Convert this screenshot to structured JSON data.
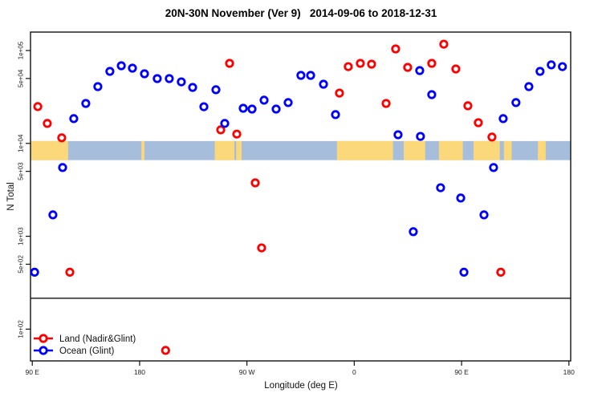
{
  "chart_data": {
    "type": "scatter",
    "title": "20N-30N November (Ver 9)   2014-09-06 to 2018-12-31",
    "xlabel": "Longitude (deg E)",
    "ylabel": "N Total",
    "x_axis": {
      "range_deg": [
        88.5,
        541.5
      ],
      "tick_values_deg": [
        90,
        180,
        270,
        360,
        450,
        540
      ],
      "tick_labels": [
        "90 E",
        "180",
        "90 W",
        "0",
        "90 E",
        "180"
      ]
    },
    "y_axis": {
      "scale": "log",
      "tick_values": [
        100000,
        50000,
        10000,
        5000,
        1000,
        500,
        100
      ],
      "tick_labels": [
        "1e+05",
        "5e+04",
        "1e+04",
        "5e+03",
        "1e+03",
        "5e+02",
        "1e+02"
      ]
    },
    "grid": false,
    "separator_line_value": 215,
    "separator_line_color": "#555555",
    "map_band": {
      "top_value": 10600,
      "bottom_value": 6600,
      "ocean_color": "#A6BDDB",
      "land_color": "#FBD97B",
      "land_segments_deg": [
        [
          88.5,
          120
        ],
        [
          181.5,
          184
        ],
        [
          243,
          259.5
        ],
        [
          261,
          265.5
        ],
        [
          345.5,
          392.5
        ],
        [
          401.5,
          419.5
        ],
        [
          431,
          451
        ],
        [
          460,
          482
        ],
        [
          485.5,
          492
        ],
        [
          514,
          520.5
        ]
      ]
    },
    "legend": {
      "position": "bottom-left",
      "items": [
        "Land (Nadir&Glint)",
        "Ocean (Glint)"
      ]
    },
    "series": [
      {
        "name": "Land (Nadir&Glint)",
        "color": "#FF0000",
        "marker": "open-circle",
        "points_lon_value": [
          [
            94.6,
            24900
          ],
          [
            102.6,
            16400
          ],
          [
            114.7,
            11500
          ],
          [
            121.5,
            410
          ],
          [
            201.8,
            59
          ],
          [
            248.0,
            14000
          ],
          [
            255.4,
            72800
          ],
          [
            261.5,
            12600
          ],
          [
            277.0,
            3760
          ],
          [
            282.3,
            750
          ],
          [
            347.6,
            34800
          ],
          [
            355.0,
            67100
          ],
          [
            365.1,
            72800
          ],
          [
            374.5,
            71300
          ],
          [
            386.7,
            26900
          ],
          [
            394.7,
            104000
          ],
          [
            404.8,
            65900
          ],
          [
            425.0,
            72800
          ],
          [
            435.1,
            117000
          ],
          [
            445.2,
            63300
          ],
          [
            455.3,
            25400
          ],
          [
            464.0,
            16700
          ],
          [
            475.5,
            11700
          ],
          [
            482.9,
            410
          ]
        ]
      },
      {
        "name": "Ocean (Glint)",
        "color": "#0000FF",
        "marker": "open-circle",
        "points_lon_value": [
          [
            91.9,
            410
          ],
          [
            107.3,
            1700
          ],
          [
            115.4,
            5500
          ],
          [
            124.8,
            18500
          ],
          [
            134.9,
            26900
          ],
          [
            145.0,
            40900
          ],
          [
            155.1,
            59600
          ],
          [
            164.6,
            68500
          ],
          [
            174.0,
            64600
          ],
          [
            184.1,
            56200
          ],
          [
            194.8,
            49900
          ],
          [
            204.9,
            49900
          ],
          [
            215.0,
            46000
          ],
          [
            224.5,
            40100
          ],
          [
            233.9,
            24800
          ],
          [
            244.0,
            37800
          ],
          [
            251.4,
            16400
          ],
          [
            266.9,
            23900
          ],
          [
            274.3,
            23400
          ],
          [
            284.4,
            29200
          ],
          [
            294.5,
            23400
          ],
          [
            304.6,
            27500
          ],
          [
            315.3,
            54000
          ],
          [
            323.4,
            54000
          ],
          [
            334.2,
            43400
          ],
          [
            344.3,
            20400
          ],
          [
            396.7,
            12400
          ],
          [
            409.5,
            1120
          ],
          [
            414.9,
            60800
          ],
          [
            415.5,
            11900
          ],
          [
            425.0,
            33500
          ],
          [
            432.4,
            3330
          ],
          [
            449.3,
            2580
          ],
          [
            452.0,
            410
          ],
          [
            468.8,
            1700
          ],
          [
            476.8,
            5500
          ],
          [
            484.9,
            18500
          ],
          [
            495.6,
            27500
          ],
          [
            506.4,
            40900
          ],
          [
            515.8,
            59600
          ],
          [
            525.2,
            70000
          ],
          [
            534.6,
            67100
          ]
        ]
      }
    ]
  }
}
